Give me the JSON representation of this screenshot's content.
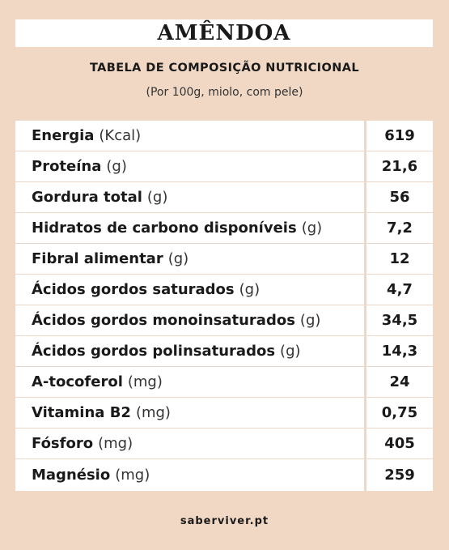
{
  "title": "AMÊNDOA",
  "subtitle": "TABELA DE COMPOSIÇÃO NUTRICIONAL",
  "note": "(Por 100g, miolo, com pele)",
  "rows": [
    {
      "name": "Energia",
      "unit": "(Kcal)",
      "value": "619"
    },
    {
      "name": "Proteína",
      "unit": "(g)",
      "value": "21,6"
    },
    {
      "name": "Gordura total",
      "unit": "(g)",
      "value": "56"
    },
    {
      "name": "Hidratos de carbono disponíveis",
      "unit": "(g)",
      "value": "7,2"
    },
    {
      "name": "Fibral alimentar",
      "unit": "(g)",
      "value": "12"
    },
    {
      "name": "Ácidos gordos saturados",
      "unit": "(g)",
      "value": "4,7"
    },
    {
      "name": "Ácidos gordos monoinsaturados",
      "unit": "(g)",
      "value": "34,5"
    },
    {
      "name": "Ácidos gordos polinsaturados",
      "unit": "(g)",
      "value": "14,3"
    },
    {
      "name": "A-tocoferol",
      "unit": "(mg)",
      "value": "24"
    },
    {
      "name": "Vitamina B2",
      "unit": "(mg)",
      "value": "0,75"
    },
    {
      "name": "Fósforo",
      "unit": "(mg)",
      "value": "405"
    },
    {
      "name": "Magnésio",
      "unit": "(mg)",
      "value": "259"
    }
  ],
  "footer": "saberviver.pt",
  "colors": {
    "background": "#f0d8c4",
    "panel": "#ffffff",
    "divider": "#ecd8c8",
    "text": "#1a1a1a"
  }
}
